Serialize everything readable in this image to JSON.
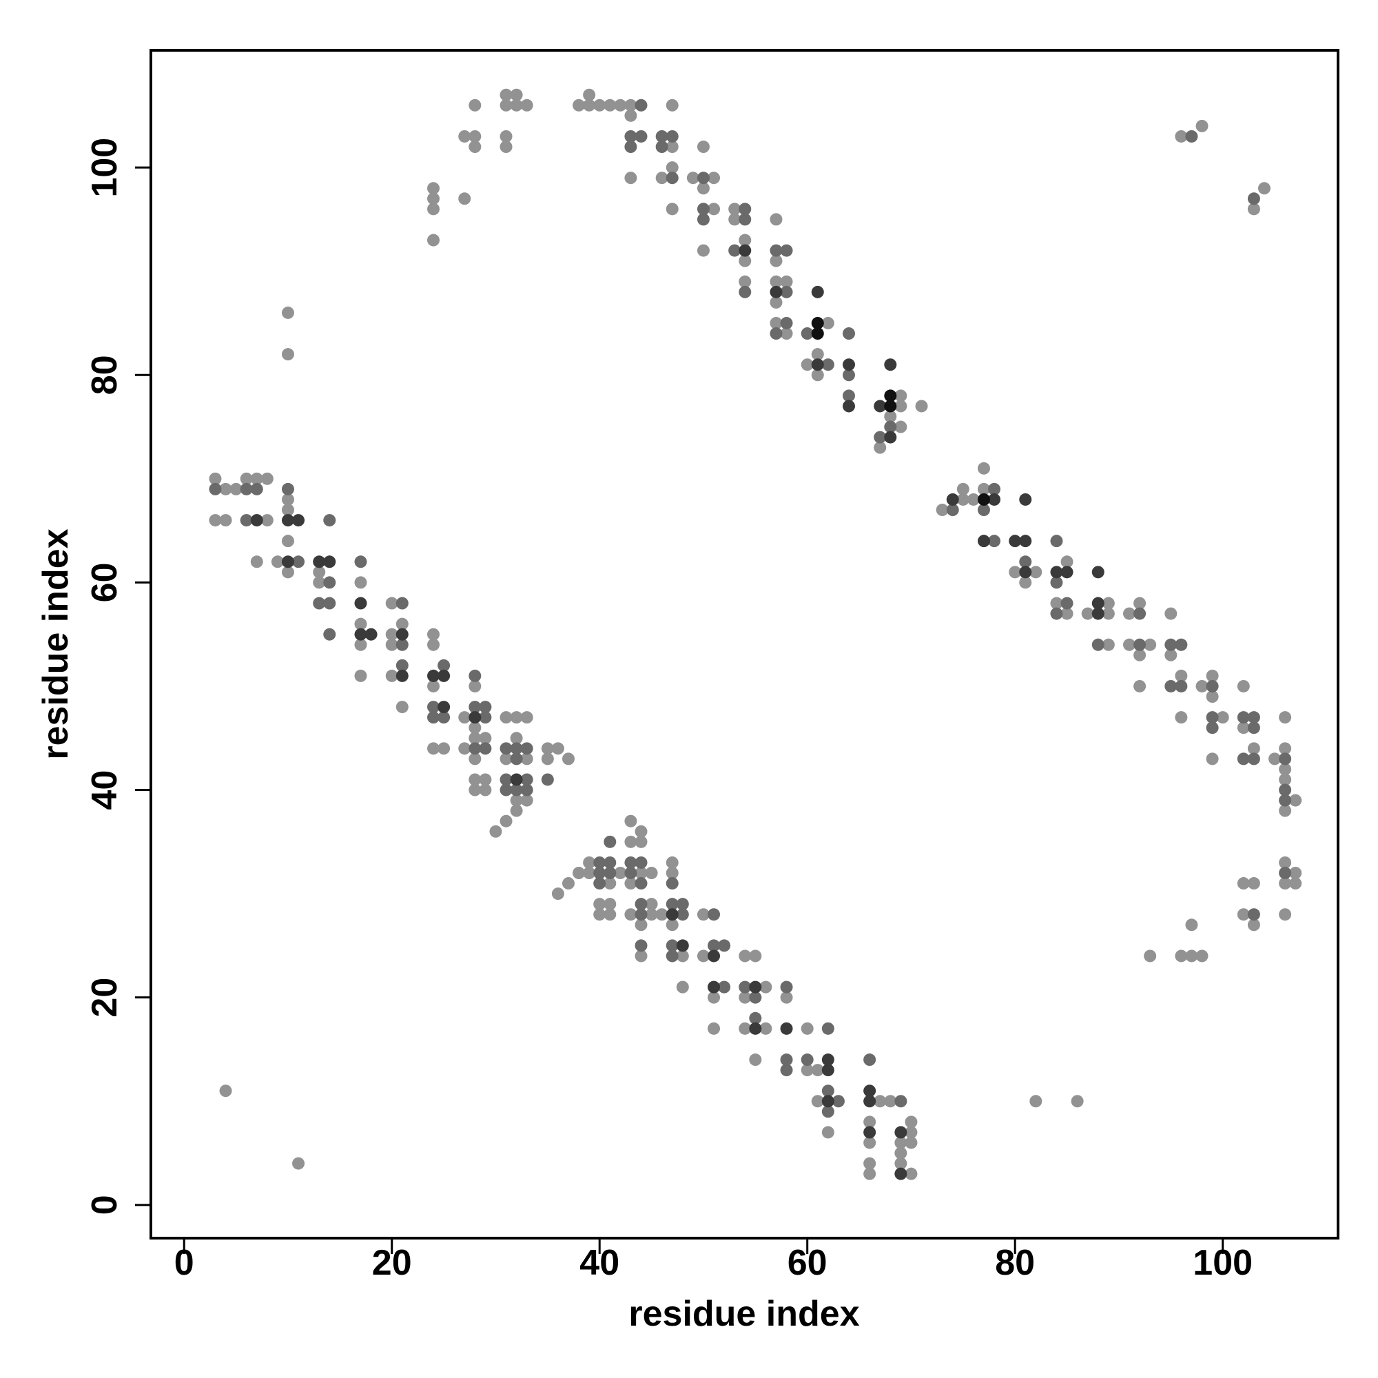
{
  "chart_data": {
    "type": "scatter",
    "x_label": "residue index",
    "y_label": "residue index",
    "xlim": [
      -3.2,
      111.1
    ],
    "ylim": [
      -3.2,
      111.3
    ],
    "xticks": [
      0,
      20,
      40,
      60,
      80,
      100
    ],
    "yticks": [
      0,
      20,
      40,
      60,
      80,
      100
    ],
    "series": [
      {
        "color": "#929292",
        "x": [
          3,
          4,
          5,
          6,
          7,
          8,
          3,
          4,
          8,
          7,
          10,
          10,
          10,
          9,
          10,
          13,
          13,
          17,
          17,
          17,
          17,
          20,
          20,
          21,
          20,
          20,
          21,
          24,
          24,
          24,
          24,
          25,
          28,
          27,
          28,
          28,
          29,
          27,
          28,
          28,
          29,
          28,
          29,
          31,
          32,
          33,
          32,
          31,
          33,
          32,
          33,
          32,
          31,
          30,
          35,
          36,
          35,
          37,
          36,
          37,
          38,
          39,
          39,
          41,
          42,
          40,
          41,
          40,
          41,
          43,
          43,
          44,
          44,
          44,
          45,
          43,
          45,
          43,
          45,
          46,
          44,
          44,
          47,
          47,
          47,
          48,
          48,
          50,
          50,
          51,
          51,
          54,
          55,
          56,
          54,
          54,
          56,
          55,
          58,
          60,
          61,
          60,
          61,
          62,
          67,
          68,
          66,
          66,
          66,
          66,
          70,
          70,
          69,
          70,
          69,
          69,
          70,
          10,
          10,
          4,
          11,
          82,
          86,
          24,
          24,
          24,
          24,
          27,
          27,
          28,
          28,
          28,
          31,
          32,
          31,
          32,
          33,
          31,
          31,
          38,
          39,
          39,
          40,
          41,
          42,
          43,
          43,
          43,
          47,
          47,
          47,
          46,
          47,
          49,
          51,
          50,
          50,
          51,
          50,
          53,
          53,
          54,
          54,
          54,
          57,
          57,
          57,
          58,
          57,
          57,
          58,
          62,
          61,
          60,
          61,
          69,
          69,
          68,
          69,
          71,
          67,
          73,
          75,
          75,
          76,
          77,
          77,
          80,
          82,
          81,
          85,
          84,
          85,
          87,
          89,
          89,
          89,
          91,
          92,
          91,
          93,
          92,
          92,
          95,
          95,
          96,
          96,
          98,
          99,
          99,
          100,
          99,
          102,
          102,
          103,
          105,
          106,
          106,
          106,
          106,
          107,
          106,
          106,
          107,
          106,
          107,
          106,
          102,
          103,
          102,
          103,
          93,
          96,
          97,
          98,
          97,
          96,
          98,
          103,
          104
        ],
        "values": [
          70,
          69,
          69,
          70,
          70,
          70,
          66,
          66,
          66,
          62,
          68,
          67,
          64,
          62,
          61,
          61,
          60,
          60,
          56,
          54,
          51,
          58,
          55,
          56,
          54,
          51,
          48,
          55,
          54,
          50,
          44,
          44,
          50,
          47,
          46,
          45,
          45,
          44,
          43,
          41,
          41,
          40,
          40,
          47,
          47,
          47,
          45,
          43,
          43,
          39,
          39,
          38,
          37,
          36,
          44,
          44,
          43,
          43,
          30,
          31,
          32,
          33,
          32,
          31,
          32,
          29,
          29,
          28,
          28,
          37,
          35,
          36,
          35,
          32,
          32,
          31,
          29,
          28,
          28,
          28,
          27,
          24,
          33,
          32,
          27,
          24,
          21,
          28,
          24,
          20,
          17,
          24,
          24,
          21,
          20,
          17,
          17,
          14,
          20,
          17,
          13,
          13,
          10,
          7,
          10,
          10,
          8,
          6,
          4,
          3,
          7,
          8,
          6,
          6,
          5,
          4,
          3,
          86,
          82,
          11,
          4,
          10,
          10,
          98,
          97,
          96,
          93,
          97,
          103,
          103,
          106,
          102,
          107,
          107,
          106,
          106,
          106,
          103,
          102,
          106,
          107,
          106,
          106,
          106,
          106,
          106,
          105,
          99,
          106,
          102,
          100,
          99,
          96,
          99,
          99,
          102,
          98,
          96,
          92,
          96,
          95,
          93,
          91,
          89,
          95,
          91,
          89,
          89,
          87,
          85,
          84,
          85,
          82,
          81,
          80,
          78,
          77,
          76,
          75,
          77,
          73,
          67,
          68,
          69,
          68,
          71,
          69,
          61,
          61,
          60,
          62,
          58,
          57,
          57,
          58,
          57,
          54,
          57,
          58,
          54,
          54,
          53,
          50,
          57,
          53,
          51,
          47,
          50,
          51,
          49,
          47,
          43,
          50,
          46,
          44,
          43,
          47,
          44,
          42,
          41,
          39,
          38,
          33,
          32,
          31,
          31,
          28,
          31,
          31,
          28,
          27,
          24,
          24,
          24,
          24,
          27,
          103,
          104,
          96,
          98
        ]
      },
      {
        "color": "#6a6a6a",
        "x": [
          3,
          6,
          7,
          6,
          10,
          11,
          14,
          14,
          13,
          14,
          14,
          17,
          21,
          21,
          21,
          25,
          24,
          24,
          25,
          28,
          28,
          29,
          29,
          28,
          29,
          31,
          32,
          33,
          32,
          31,
          33,
          31,
          32,
          33,
          35,
          40,
          41,
          40,
          41,
          40,
          41,
          43,
          44,
          43,
          44,
          44,
          44,
          44,
          47,
          47,
          48,
          48,
          47,
          47,
          51,
          51,
          52,
          52,
          54,
          55,
          55,
          58,
          58,
          58,
          62,
          60,
          62,
          62,
          63,
          66,
          69,
          44,
          43,
          44,
          43,
          46,
          47,
          46,
          47,
          50,
          50,
          50,
          54,
          54,
          53,
          54,
          57,
          58,
          58,
          58,
          57,
          60,
          62,
          64,
          64,
          64,
          68,
          67,
          74,
          78,
          77,
          78,
          81,
          84,
          84,
          85,
          84,
          88,
          92,
          92,
          95,
          96,
          95,
          96,
          99,
          99,
          99,
          102,
          103,
          103,
          102,
          103,
          106,
          106,
          106,
          106,
          103,
          97,
          103
        ],
        "values": [
          69,
          69,
          69,
          66,
          69,
          62,
          66,
          60,
          58,
          58,
          55,
          62,
          58,
          54,
          52,
          52,
          48,
          47,
          47,
          51,
          48,
          48,
          47,
          44,
          44,
          44,
          44,
          44,
          43,
          41,
          41,
          40,
          40,
          40,
          41,
          33,
          33,
          32,
          32,
          31,
          35,
          33,
          33,
          32,
          31,
          29,
          28,
          25,
          31,
          29,
          29,
          28,
          25,
          24,
          28,
          25,
          25,
          21,
          21,
          20,
          18,
          21,
          14,
          13,
          17,
          14,
          11,
          9,
          10,
          14,
          10,
          106,
          103,
          103,
          102,
          103,
          103,
          102,
          99,
          99,
          96,
          95,
          96,
          95,
          92,
          88,
          92,
          92,
          88,
          85,
          84,
          84,
          81,
          84,
          80,
          78,
          75,
          74,
          67,
          69,
          67,
          64,
          62,
          64,
          60,
          58,
          57,
          54,
          57,
          54,
          54,
          54,
          50,
          50,
          50,
          47,
          46,
          47,
          47,
          46,
          43,
          43,
          43,
          40,
          39,
          32,
          28,
          103,
          97
        ]
      },
      {
        "color": "#3a3a3a",
        "x": [
          7,
          10,
          11,
          10,
          13,
          14,
          17,
          17,
          18,
          21,
          21,
          24,
          25,
          25,
          28,
          32,
          47,
          48,
          51,
          51,
          55,
          55,
          58,
          62,
          62,
          62,
          66,
          66,
          66,
          69,
          69,
          54,
          57,
          61,
          61,
          64,
          64,
          68,
          67,
          68,
          74,
          78,
          77,
          81,
          80,
          81,
          81,
          84,
          85,
          88,
          88,
          88
        ],
        "values": [
          66,
          66,
          66,
          62,
          62,
          62,
          58,
          55,
          55,
          55,
          51,
          51,
          51,
          48,
          47,
          41,
          28,
          25,
          24,
          21,
          21,
          17,
          17,
          14,
          13,
          10,
          11,
          10,
          7,
          7,
          3,
          92,
          88,
          88,
          81,
          81,
          77,
          81,
          77,
          74,
          68,
          68,
          64,
          68,
          64,
          64,
          61,
          61,
          61,
          61,
          58,
          57
        ]
      },
      {
        "color": "#111111",
        "x": [
          61,
          61,
          68,
          68,
          77
        ],
        "values": [
          85,
          84,
          78,
          77,
          68
        ]
      }
    ]
  }
}
